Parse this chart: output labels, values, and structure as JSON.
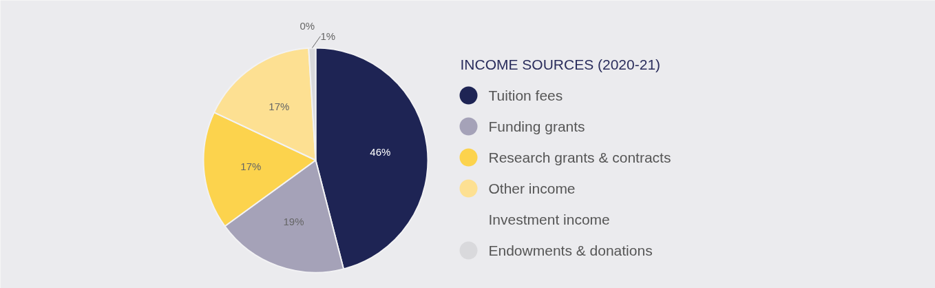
{
  "chart_data": {
    "type": "pie",
    "legend_title": "INCOME SOURCES (2020-21)",
    "categories": [
      "Tuition fees",
      "Funding grants",
      "Research grants & contracts",
      "Other income",
      "Investment income",
      "Endowments & donations"
    ],
    "values": [
      46,
      19,
      17,
      17,
      0,
      1
    ],
    "colors": [
      "#1e2454",
      "#a5a2b8",
      "#fcd34d",
      "#fde092",
      "#ebebee",
      "#d9d9dc"
    ],
    "value_labels": [
      "46%",
      "19%",
      "17%",
      "17%",
      "0%",
      "1%"
    ],
    "legend": "right"
  }
}
